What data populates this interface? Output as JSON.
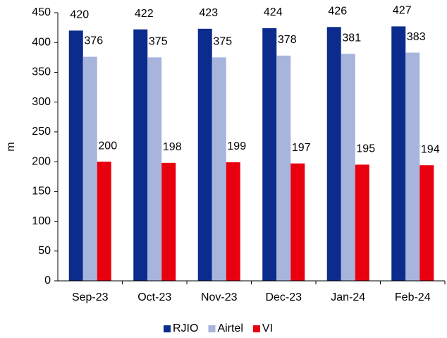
{
  "chart_data": {
    "type": "bar",
    "y_label": "m",
    "categories": [
      "Sep-23",
      "Oct-23",
      "Nov-23",
      "Dec-23",
      "Jan-24",
      "Feb-24"
    ],
    "series": [
      {
        "name": "RJIO",
        "color": "#0b2c8c",
        "values": [
          420,
          422,
          423,
          424,
          426,
          427
        ]
      },
      {
        "name": "Airtel",
        "color": "#a7b4dc",
        "values": [
          376,
          375,
          375,
          378,
          381,
          383
        ]
      },
      {
        "name": "VI",
        "color": "#e8000f",
        "values": [
          200,
          198,
          199,
          197,
          195,
          194
        ]
      }
    ],
    "ylim": [
      0,
      450
    ],
    "yticks": [
      0,
      50,
      100,
      150,
      200,
      250,
      300,
      350,
      400,
      450
    ],
    "grid": false,
    "legend": "bottom"
  }
}
